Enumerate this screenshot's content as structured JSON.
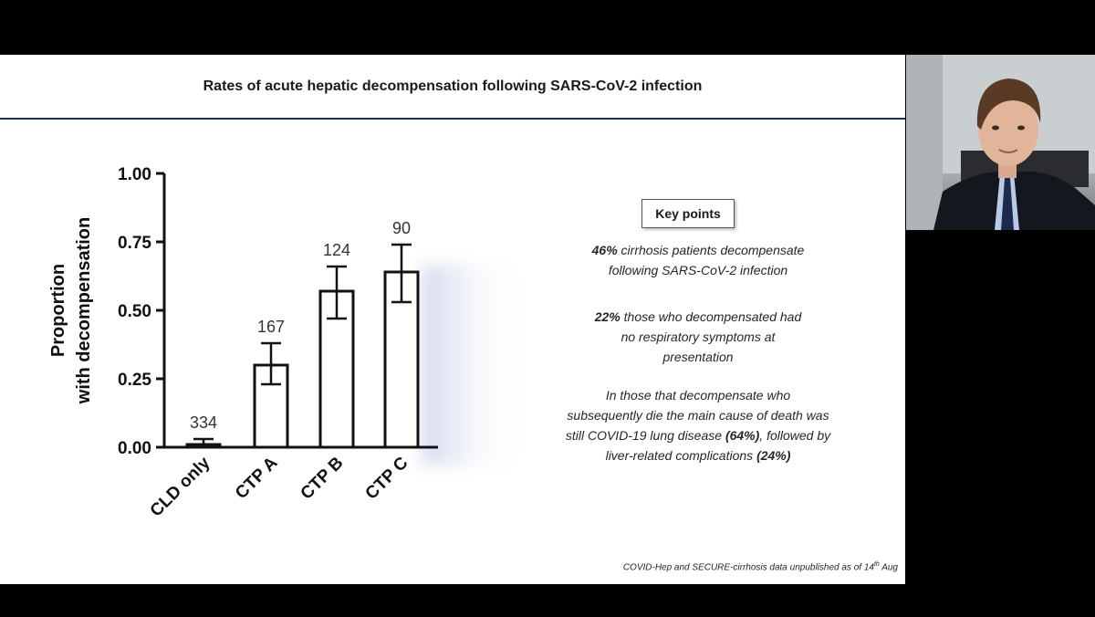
{
  "slide": {
    "title": "Rates of acute hepatic decompensation following SARS-CoV-2 infection",
    "key_points_heading": "Key points",
    "key_points": [
      {
        "parts": [
          {
            "b": "46%"
          },
          {
            "t": " cirrhosis patients decompensate"
          },
          {
            "br": true
          },
          {
            "t": "following SARS-CoV-2 infection"
          }
        ]
      },
      {
        "parts": [
          {
            "b": "22%"
          },
          {
            "t": " those who decompensated had"
          },
          {
            "br": true
          },
          {
            "t": "no respiratory symptoms at"
          },
          {
            "br": true
          },
          {
            "t": "presentation"
          }
        ]
      },
      {
        "parts": [
          {
            "t": "In those that decompensate who"
          },
          {
            "br": true
          },
          {
            "t": "subsequently die the main cause of death was"
          },
          {
            "br": true
          },
          {
            "t": "still COVID-19 lung disease "
          },
          {
            "b": "(64%)"
          },
          {
            "t": ", followed by"
          },
          {
            "br": true
          },
          {
            "t": "liver-related complications "
          },
          {
            "b": "(24%)"
          }
        ]
      }
    ],
    "footnote_main": "COVID-Hep and SECURE-cirrhosis data unpublished as of 14",
    "footnote_sup": "th",
    "footnote_end": " Aug"
  },
  "chart_data": {
    "type": "bar",
    "title": "",
    "xlabel": "",
    "ylabel_lines": [
      "Proportion",
      "with decompensation"
    ],
    "categories": [
      "CLD only",
      "CTP A",
      "CTP B",
      "CTP C"
    ],
    "values": [
      0.01,
      0.3,
      0.57,
      0.64
    ],
    "error_low": [
      0.0,
      0.23,
      0.47,
      0.53
    ],
    "error_high": [
      0.03,
      0.38,
      0.66,
      0.74
    ],
    "bar_labels": [
      "334",
      "167",
      "124",
      "90"
    ],
    "ylim": [
      0,
      1
    ],
    "yticks": [
      0,
      0.25,
      0.5,
      0.75,
      1
    ],
    "ytick_labels": [
      "0.00",
      "0.25",
      "0.50",
      "0.75",
      "1.00"
    ],
    "grid": false,
    "bar_fill": "#ffffff",
    "bar_stroke": "#111111"
  },
  "webcam": {
    "icon": "presenter-video-feed"
  }
}
